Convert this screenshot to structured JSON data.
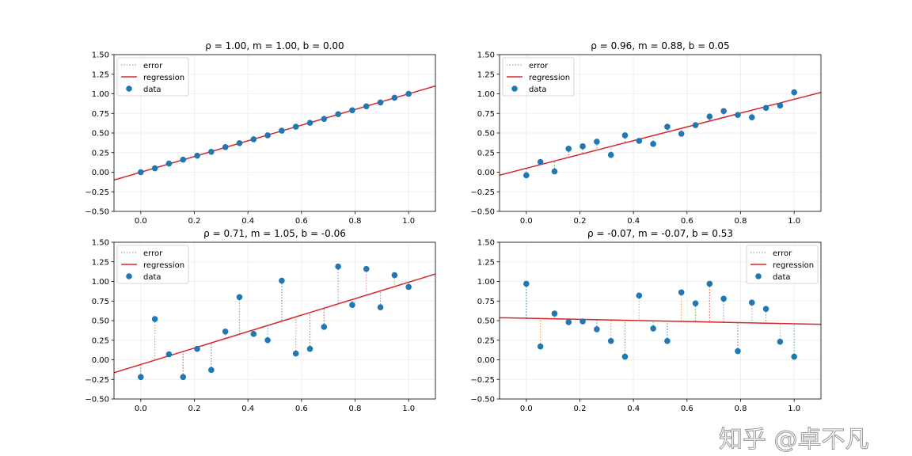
{
  "chart_data": [
    {
      "type": "scatter",
      "title": "ρ = 1.00, m = 1.00, b = 0.00",
      "xlim": [
        -0.1,
        1.1
      ],
      "ylim": [
        -0.5,
        1.5
      ],
      "xticks": [
        "0.0",
        "0.2",
        "0.4",
        "0.6",
        "0.8",
        "1.0"
      ],
      "yticks": [
        "−0.50",
        "−0.25",
        "0.00",
        "0.25",
        "0.50",
        "0.75",
        "1.00",
        "1.25",
        "1.50"
      ],
      "grid": true,
      "legend_position": "top-left",
      "legend": [
        "error",
        "regression",
        "data"
      ],
      "regression": {
        "m": 1.0,
        "b": 0.0
      },
      "x": [
        0,
        0.0526,
        0.1053,
        0.1579,
        0.2105,
        0.2632,
        0.3158,
        0.3684,
        0.4211,
        0.4737,
        0.5263,
        0.5789,
        0.6316,
        0.6842,
        0.7368,
        0.7895,
        0.8421,
        0.8947,
        0.9474,
        1.0
      ],
      "y": [
        0,
        0.05,
        0.11,
        0.16,
        0.21,
        0.26,
        0.32,
        0.37,
        0.42,
        0.47,
        0.53,
        0.58,
        0.63,
        0.68,
        0.74,
        0.79,
        0.84,
        0.89,
        0.95,
        1.0
      ]
    },
    {
      "type": "scatter",
      "title": "ρ = 0.96, m = 0.88, b = 0.05",
      "xlim": [
        -0.1,
        1.1
      ],
      "ylim": [
        -0.5,
        1.5
      ],
      "xticks": [
        "0.0",
        "0.2",
        "0.4",
        "0.6",
        "0.8",
        "1.0"
      ],
      "yticks": [
        "−0.50",
        "−0.25",
        "0.00",
        "0.25",
        "0.50",
        "0.75",
        "1.00",
        "1.25",
        "1.50"
      ],
      "grid": true,
      "legend_position": "top-left",
      "legend": [
        "error",
        "regression",
        "data"
      ],
      "regression": {
        "m": 0.88,
        "b": 0.05
      },
      "x": [
        0,
        0.0526,
        0.1053,
        0.1579,
        0.2105,
        0.2632,
        0.3158,
        0.3684,
        0.4211,
        0.4737,
        0.5263,
        0.5789,
        0.6316,
        0.6842,
        0.7368,
        0.7895,
        0.8421,
        0.8947,
        0.9474,
        1.0
      ],
      "y": [
        -0.04,
        0.13,
        0.01,
        0.3,
        0.33,
        0.39,
        0.22,
        0.47,
        0.4,
        0.36,
        0.58,
        0.49,
        0.6,
        0.71,
        0.78,
        0.73,
        0.7,
        0.82,
        0.85,
        1.02
      ]
    },
    {
      "type": "scatter",
      "title": "ρ = 0.71, m = 1.05, b = -0.06",
      "xlim": [
        -0.1,
        1.1
      ],
      "ylim": [
        -0.5,
        1.5
      ],
      "xticks": [
        "0.0",
        "0.2",
        "0.4",
        "0.6",
        "0.8",
        "1.0"
      ],
      "yticks": [
        "−0.50",
        "−0.25",
        "0.00",
        "0.25",
        "0.50",
        "0.75",
        "1.00",
        "1.25",
        "1.50"
      ],
      "grid": true,
      "legend_position": "top-left",
      "legend": [
        "error",
        "regression",
        "data"
      ],
      "regression": {
        "m": 1.05,
        "b": -0.06
      },
      "x": [
        0,
        0.0526,
        0.1053,
        0.1579,
        0.2105,
        0.2632,
        0.3158,
        0.3684,
        0.4211,
        0.4737,
        0.5263,
        0.5789,
        0.6316,
        0.6842,
        0.7368,
        0.7895,
        0.8421,
        0.8947,
        0.9474,
        1.0
      ],
      "y": [
        -0.22,
        0.52,
        0.07,
        -0.22,
        0.14,
        -0.13,
        0.36,
        0.8,
        0.33,
        0.25,
        1.01,
        0.08,
        0.14,
        0.42,
        1.19,
        0.7,
        1.16,
        0.67,
        1.08,
        0.93
      ]
    },
    {
      "type": "scatter",
      "title": "ρ = -0.07, m = -0.07, b = 0.53",
      "xlim": [
        -0.1,
        1.1
      ],
      "ylim": [
        -0.5,
        1.5
      ],
      "xticks": [
        "0.0",
        "0.2",
        "0.4",
        "0.6",
        "0.8",
        "1.0"
      ],
      "yticks": [
        "−0.50",
        "−0.25",
        "0.00",
        "0.25",
        "0.50",
        "0.75",
        "1.00",
        "1.25",
        "1.50"
      ],
      "grid": true,
      "legend_position": "top-right",
      "legend": [
        "error",
        "regression",
        "data"
      ],
      "regression": {
        "m": -0.07,
        "b": 0.53
      },
      "x": [
        0,
        0.0526,
        0.1053,
        0.1579,
        0.2105,
        0.2632,
        0.3158,
        0.3684,
        0.4211,
        0.4737,
        0.5263,
        0.5789,
        0.6316,
        0.6842,
        0.7368,
        0.7895,
        0.8421,
        0.8947,
        0.9474,
        1.0
      ],
      "y": [
        0.97,
        0.17,
        0.59,
        0.48,
        0.49,
        0.39,
        0.24,
        0.04,
        0.82,
        0.4,
        0.24,
        0.86,
        0.72,
        0.97,
        0.78,
        0.11,
        0.73,
        0.65,
        0.23,
        0.04
      ]
    }
  ],
  "colors": {
    "data": "#1f77b4",
    "regression": "#d62728",
    "error_cycle": [
      "#1f77b4",
      "#ff7f0e",
      "#2ca02c",
      "#d62728",
      "#9467bd",
      "#8c564b",
      "#e377c2",
      "#7f7f7f",
      "#bcbd22",
      "#17becf"
    ]
  },
  "watermark": "知乎 @卓不凡"
}
